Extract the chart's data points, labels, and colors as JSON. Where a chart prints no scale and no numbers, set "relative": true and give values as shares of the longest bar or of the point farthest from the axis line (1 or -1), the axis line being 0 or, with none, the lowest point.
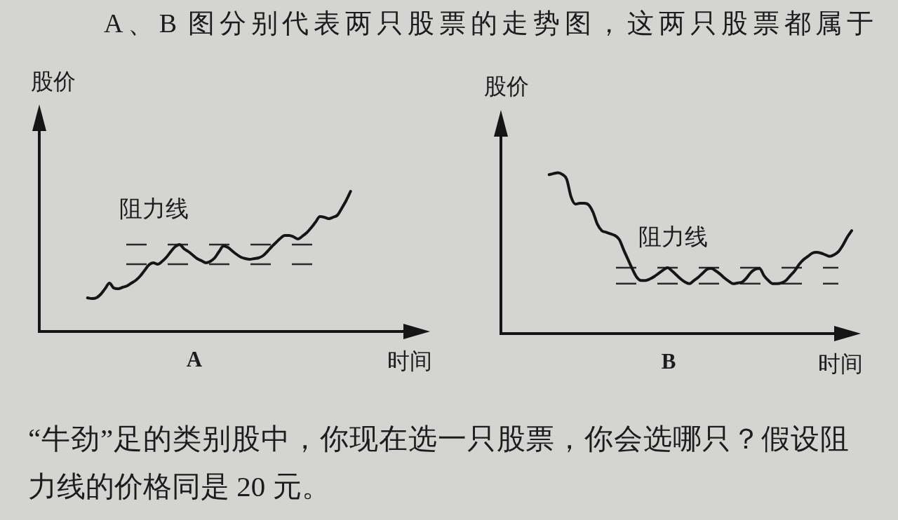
{
  "chart_data": [
    {
      "type": "line",
      "title": "A",
      "xlabel": "时间",
      "ylabel": "股价",
      "relative": true,
      "categories": [
        null,
        null,
        null,
        null,
        null,
        null,
        null,
        null,
        null,
        null,
        null,
        null,
        null,
        null,
        null,
        null,
        null,
        null,
        null,
        null,
        null,
        null,
        null,
        null,
        null,
        null,
        null,
        null,
        null,
        null,
        null,
        null,
        null,
        null,
        null,
        null,
        null,
        null,
        null,
        null,
        null,
        null,
        null,
        null,
        null,
        null,
        null,
        null,
        null,
        null,
        null,
        null,
        null,
        null,
        null,
        null,
        null,
        null,
        null,
        null,
        null,
        null,
        null,
        null,
        null,
        null,
        null,
        null,
        null,
        null,
        null,
        null,
        null,
        null,
        null,
        null,
        null,
        null,
        null,
        null,
        null,
        null,
        null,
        null,
        null,
        null,
        null,
        null,
        null
      ],
      "values": [
        null,
        null,
        null,
        null,
        null,
        null,
        null,
        null,
        null,
        null,
        null,
        0.24,
        0.235,
        0.24,
        0.265,
        0.305,
        0.345,
        0.31,
        0.305,
        0.315,
        0.325,
        0.345,
        0.365,
        0.395,
        0.435,
        0.475,
        0.49,
        0.48,
        0.5,
        0.53,
        0.57,
        0.605,
        0.62,
        0.59,
        0.57,
        0.545,
        0.52,
        0.505,
        0.49,
        0.5,
        0.525,
        0.57,
        0.61,
        0.6,
        0.575,
        0.55,
        0.53,
        0.52,
        0.515,
        0.52,
        0.525,
        0.54,
        0.57,
        0.605,
        0.635,
        0.665,
        0.685,
        0.685,
        0.675,
        0.66,
        0.68,
        0.705,
        0.74,
        0.78,
        0.82,
        0.815,
        0.805,
        0.815,
        0.83,
        0.88,
        0.935,
        1,
        null,
        null,
        null,
        null,
        null,
        null,
        null,
        null,
        null,
        null,
        null,
        null,
        null,
        null,
        null,
        null,
        null
      ],
      "color": "#151515",
      "ref_lines": [
        {
          "axis": "y",
          "value": 0.62,
          "label": "阻力线",
          "line_style": "dashed",
          "color": "#2a2a2a"
        },
        {
          "axis": "y",
          "value": 0.48,
          "line_style": "dashed",
          "color": "#2a2a2a"
        }
      ],
      "annotations": [
        "A、B 图分别代表两只股票的走势图，这两只股票都属于",
        "“牛劲”足的类别股中，你现在选一只股票，你会选哪只？假设阻力线的价格同是 20 元。"
      ]
    },
    {
      "type": "line",
      "title": "B",
      "xlabel": "时间",
      "ylabel": "股价",
      "relative": true,
      "categories": [
        null,
        null,
        null,
        null,
        null,
        null,
        null,
        null,
        null,
        null,
        null,
        null,
        null,
        null,
        null,
        null,
        null,
        null,
        null,
        null,
        null,
        null,
        null,
        null,
        null,
        null,
        null,
        null,
        null,
        null,
        null,
        null,
        null,
        null,
        null,
        null,
        null,
        null,
        null,
        null,
        null,
        null,
        null,
        null,
        null,
        null,
        null,
        null,
        null,
        null,
        null,
        null,
        null,
        null,
        null,
        null,
        null,
        null,
        null,
        null,
        null,
        null,
        null,
        null,
        null,
        null,
        null,
        null,
        null,
        null,
        null,
        null,
        null,
        null,
        null,
        null,
        null,
        null,
        null,
        null,
        null,
        null
      ],
      "values": [
        null,
        null,
        null,
        null,
        null,
        null,
        null,
        null,
        null,
        null,
        null,
        0.988,
        0.995,
        1,
        0.99,
        0.96,
        0.85,
        0.805,
        0.81,
        0.81,
        0.8,
        0.755,
        0.68,
        0.64,
        0.63,
        0.62,
        0.61,
        0.585,
        0.52,
        0.46,
        0.4,
        0.35,
        0.33,
        0.33,
        0.34,
        0.355,
        0.375,
        0.395,
        0.41,
        0.39,
        0.365,
        0.34,
        0.32,
        0.31,
        0.33,
        0.35,
        0.375,
        0.4,
        0.405,
        0.39,
        0.37,
        0.345,
        0.325,
        0.31,
        0.315,
        0.32,
        0.345,
        0.38,
        0.4,
        0.405,
        0.36,
        0.33,
        0.31,
        0.31,
        0.315,
        0.33,
        0.36,
        0.39,
        0.43,
        0.46,
        0.48,
        0.5,
        0.505,
        0.5,
        0.49,
        0.48,
        0.49,
        0.51,
        0.55,
        0.6,
        0.64,
        null
      ],
      "color": "#151515",
      "ref_lines": [
        {
          "axis": "y",
          "value": 0.41,
          "label": "阻力线",
          "line_style": "dashed",
          "color": "#2a2a2a"
        },
        {
          "axis": "y",
          "value": 0.31,
          "line_style": "dashed",
          "color": "#2a2a2a"
        }
      ]
    }
  ]
}
